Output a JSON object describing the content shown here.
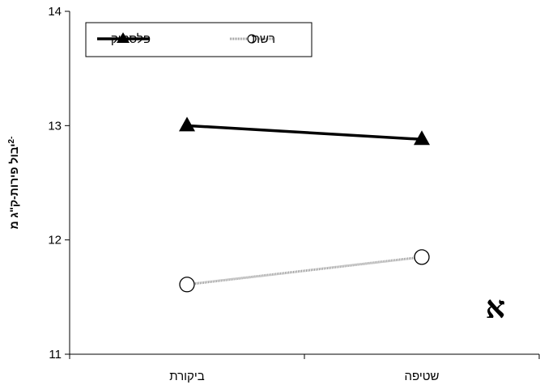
{
  "chart_data": {
    "type": "line",
    "categories": [
      "ביקורת",
      "שטיפה"
    ],
    "series": [
      {
        "name": "פלסטיק",
        "values": [
          13.0,
          12.88
        ],
        "color": "#000000",
        "marker": "triangle-filled"
      },
      {
        "name": "רשת",
        "values": [
          11.61,
          11.85
        ],
        "color": "#8c8c8c",
        "marker": "circle-open"
      }
    ],
    "ylim": [
      11,
      14
    ],
    "yticks": [
      "11",
      "12",
      "13",
      "14"
    ],
    "ylabel": "יבול פירות-ק\"ג מ",
    "ylabel_superscript": "-2",
    "panel_label": "א",
    "legend_position": "top-left",
    "grid": false
  }
}
